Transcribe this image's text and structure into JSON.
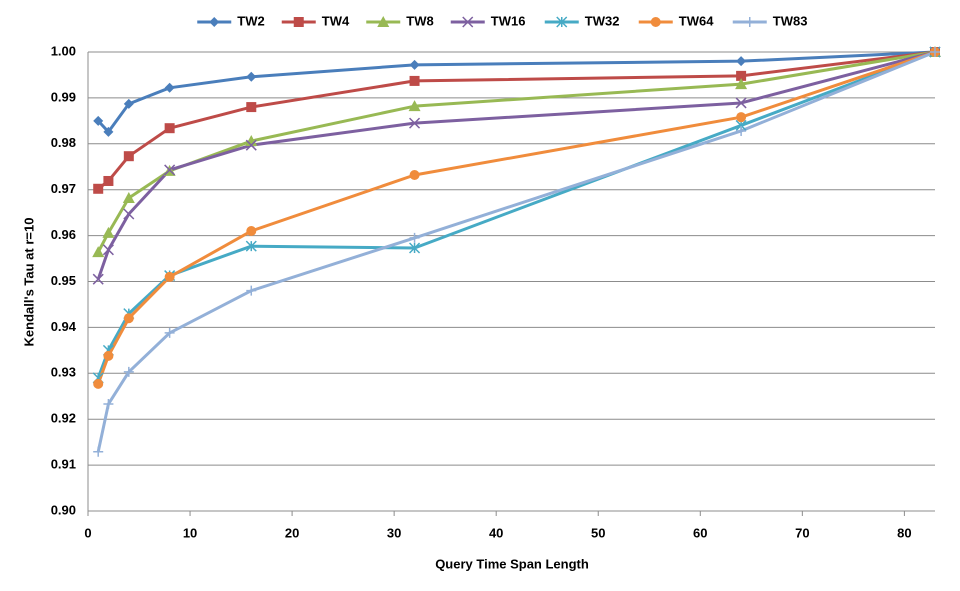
{
  "chart_data": {
    "type": "line",
    "x_label": "Query Time Span Length",
    "y_label": "Kendall's Tau at r=10",
    "x": [
      1,
      2,
      4,
      8,
      16,
      32,
      64,
      83
    ],
    "xlim": [
      0,
      83
    ],
    "xticks": [
      0,
      10,
      20,
      30,
      40,
      50,
      60,
      70,
      80
    ],
    "ylim": [
      0.9,
      1.0
    ],
    "yticks": [
      {
        "value": 0.9,
        "label": "0.90"
      },
      0.91,
      0.92,
      0.93,
      0.94,
      0.95,
      0.96,
      0.97,
      0.98,
      0.99,
      {
        "value": 1.0,
        "label": "1.00"
      }
    ],
    "grid": true,
    "legend": "top",
    "series": [
      {
        "name": "TW2",
        "color": "#4a7ebb",
        "marker": "diamond",
        "values": [
          0.985,
          0.9826,
          0.9887,
          0.9922,
          0.9946,
          0.9972,
          0.998,
          1.0
        ]
      },
      {
        "name": "TW4",
        "color": "#be4b48",
        "marker": "square",
        "values": [
          0.9702,
          0.9719,
          0.9773,
          0.9834,
          0.988,
          0.9937,
          0.9948,
          1.0
        ]
      },
      {
        "name": "TW8",
        "color": "#98b954",
        "marker": "triangle",
        "values": [
          0.9564,
          0.9606,
          0.9682,
          0.9741,
          0.9806,
          0.9882,
          0.993,
          1.0
        ]
      },
      {
        "name": "TW16",
        "color": "#7d60a0",
        "marker": "x",
        "values": [
          0.9505,
          0.9569,
          0.9647,
          0.9743,
          0.9797,
          0.9845,
          0.9889,
          1.0
        ]
      },
      {
        "name": "TW32",
        "color": "#46aac5",
        "marker": "star",
        "values": [
          0.929,
          0.935,
          0.943,
          0.9513,
          0.9577,
          0.9573,
          0.984,
          1.0
        ]
      },
      {
        "name": "TW64",
        "color": "#f08c3c",
        "marker": "circle",
        "values": [
          0.9277,
          0.9338,
          0.942,
          0.951,
          0.961,
          0.9732,
          0.9858,
          1.0
        ]
      },
      {
        "name": "TW83",
        "color": "#93b0d8",
        "marker": "plus",
        "values": [
          0.9129,
          0.9233,
          0.9303,
          0.9388,
          0.948,
          0.9595,
          0.9828,
          1.0
        ]
      }
    ]
  }
}
